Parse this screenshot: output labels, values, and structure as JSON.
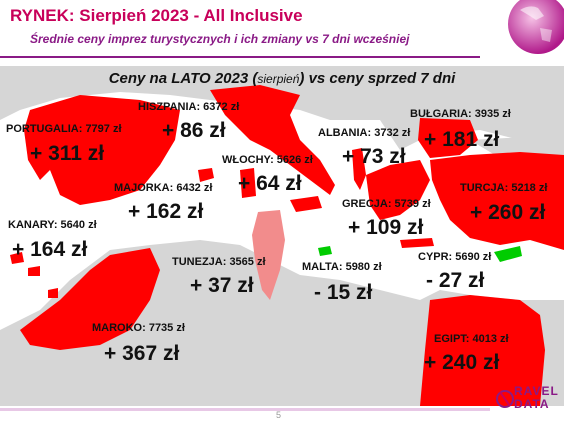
{
  "header": {
    "title": "RYNEK: Sierpień 2023 - All Inclusive",
    "subtitle": "Średnie ceny imprez turystycznych i ich zmiany vs 7 dni wcześniej"
  },
  "map": {
    "title_part1": "Ceny na LATO 2023 (",
    "title_small": "sierpień",
    "title_part2": ") vs ceny sprzed 7 dni",
    "destinations": [
      {
        "id": "hiszpania",
        "label": "HISZPANIA: 6372 zł",
        "change": "+ 86 zł"
      },
      {
        "id": "portugalia",
        "label": "PORTUGALIA: 7797 zł",
        "change": "+ 311 zł"
      },
      {
        "id": "wlochy",
        "label": "WŁOCHY: 5626 zł",
        "change": "+ 64 zł"
      },
      {
        "id": "majorka",
        "label": "MAJORKA: 6432 zł",
        "change": "+ 162 zł"
      },
      {
        "id": "albania",
        "label": "ALBANIA: 3732 zł",
        "change": "+ 73 zł"
      },
      {
        "id": "bulgaria",
        "label": "BUŁGARIA: 3935 zł",
        "change": "+ 181 zł"
      },
      {
        "id": "turcja",
        "label": "TURCJA: 5218 zł",
        "change": "+ 260 zł"
      },
      {
        "id": "grecja",
        "label": "GRECJA: 5739 zł",
        "change": "+ 109 zł"
      },
      {
        "id": "kanary",
        "label": "KANARY: 5640 zł",
        "change": "+ 164 zł"
      },
      {
        "id": "tunezja",
        "label": "TUNEZJA: 3565 zł",
        "change": "+ 37 zł"
      },
      {
        "id": "malta",
        "label": "MALTA: 5980 zł",
        "change": "- 15 zł"
      },
      {
        "id": "cypr",
        "label": "CYPR: 5690 zł",
        "change": "- 27 zł"
      },
      {
        "id": "maroko",
        "label": "MAROKO: 7735 zł",
        "change": "+ 367 zł"
      },
      {
        "id": "egipt",
        "label": "EGIPT: 4013 zł",
        "change": "+ 240 zł"
      }
    ]
  },
  "footer": {
    "page_number": "5",
    "logo_line1": "RAVEL",
    "logo_line2": "DATA"
  },
  "colors": {
    "sea": "#ffffff",
    "land": "#d6d6d6",
    "increase": "#ff0000",
    "tunezja": "#f28c8c",
    "decrease": "#00cc00",
    "accent": "#8a1a86",
    "title": "#c8005a"
  }
}
